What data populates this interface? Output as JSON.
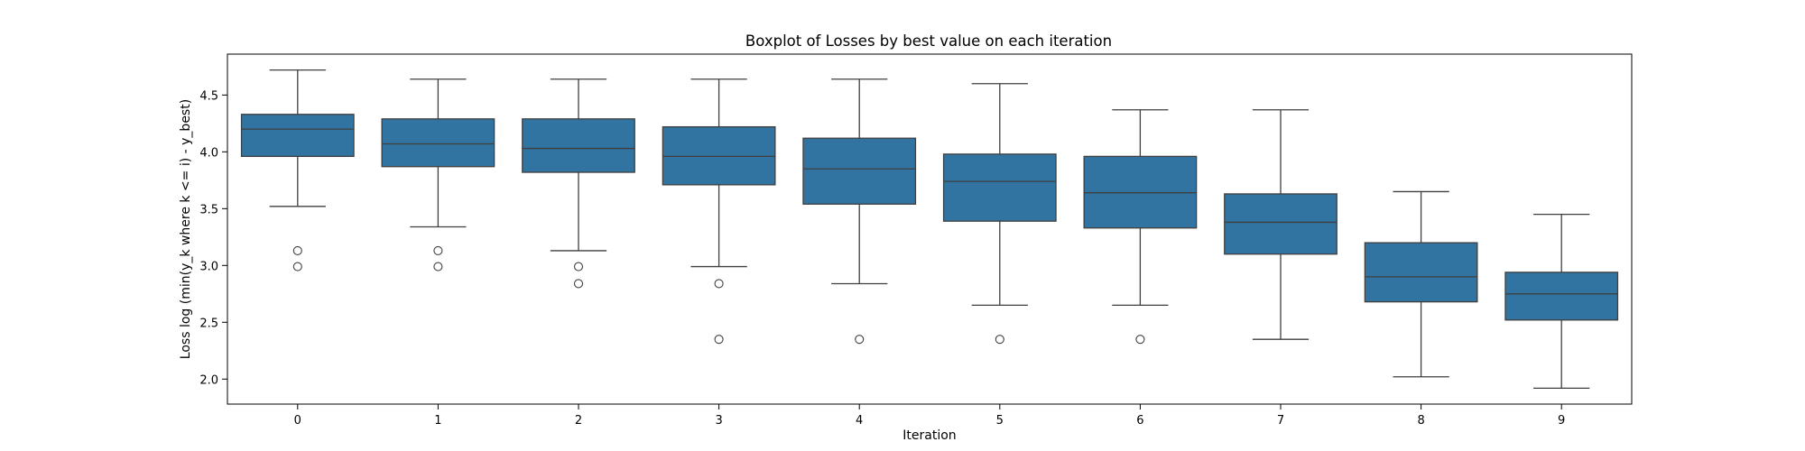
{
  "chart_data": {
    "type": "boxplot",
    "title": "Boxplot of Losses by best value on each iteration",
    "xlabel": "Iteration",
    "ylabel": "Loss log (min(y_k where k <= i) - y_best)",
    "categories": [
      "0",
      "1",
      "2",
      "3",
      "4",
      "5",
      "6",
      "7",
      "8",
      "9"
    ],
    "ylim": [
      1.78,
      4.86
    ],
    "yticks": [
      "2.0",
      "2.5",
      "3.0",
      "3.5",
      "4.0",
      "4.5"
    ],
    "grid": false,
    "box_color": "#3274a1",
    "series": [
      {
        "category": "0",
        "whisker_low": 3.52,
        "q1": 3.96,
        "median": 4.2,
        "q3": 4.33,
        "whisker_high": 4.72,
        "outliers": [
          3.13,
          2.99
        ]
      },
      {
        "category": "1",
        "whisker_low": 3.34,
        "q1": 3.87,
        "median": 4.07,
        "q3": 4.29,
        "whisker_high": 4.64,
        "outliers": [
          3.13,
          2.99
        ]
      },
      {
        "category": "2",
        "whisker_low": 3.13,
        "q1": 3.82,
        "median": 4.03,
        "q3": 4.29,
        "whisker_high": 4.64,
        "outliers": [
          2.99,
          2.84
        ]
      },
      {
        "category": "3",
        "whisker_low": 2.99,
        "q1": 3.71,
        "median": 3.96,
        "q3": 4.22,
        "whisker_high": 4.64,
        "outliers": [
          2.84,
          2.35
        ]
      },
      {
        "category": "4",
        "whisker_low": 2.84,
        "q1": 3.54,
        "median": 3.85,
        "q3": 4.12,
        "whisker_high": 4.64,
        "outliers": [
          2.35
        ]
      },
      {
        "category": "5",
        "whisker_low": 2.65,
        "q1": 3.39,
        "median": 3.74,
        "q3": 3.98,
        "whisker_high": 4.6,
        "outliers": [
          2.35
        ]
      },
      {
        "category": "6",
        "whisker_low": 2.65,
        "q1": 3.33,
        "median": 3.64,
        "q3": 3.96,
        "whisker_high": 4.37,
        "outliers": [
          2.35
        ]
      },
      {
        "category": "7",
        "whisker_low": 2.35,
        "q1": 3.1,
        "median": 3.38,
        "q3": 3.63,
        "whisker_high": 4.37,
        "outliers": []
      },
      {
        "category": "8",
        "whisker_low": 2.02,
        "q1": 2.68,
        "median": 2.9,
        "q3": 3.2,
        "whisker_high": 3.65,
        "outliers": []
      },
      {
        "category": "9",
        "whisker_low": 1.92,
        "q1": 2.52,
        "median": 2.75,
        "q3": 2.94,
        "whisker_high": 3.45,
        "outliers": []
      }
    ]
  }
}
